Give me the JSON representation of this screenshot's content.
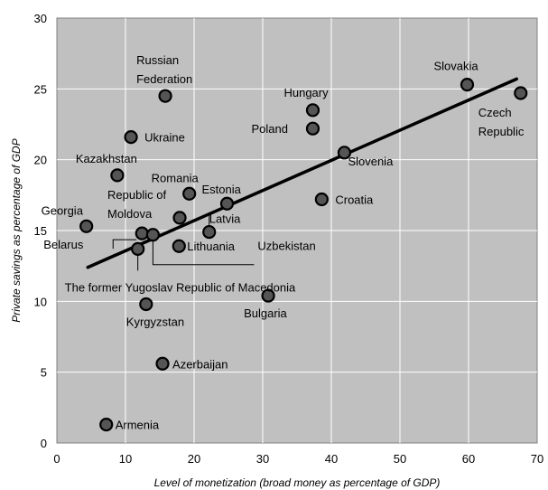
{
  "chart_data": {
    "type": "scatter",
    "title": "",
    "xlabel": "Level of monetization (broad money as percentage of GDP)",
    "ylabel": "Private savings as percentage of GDP",
    "xlim": [
      0,
      70
    ],
    "ylim": [
      0,
      30
    ],
    "x_ticks": [
      "0",
      "10",
      "20",
      "30",
      "40",
      "50",
      "60",
      "70"
    ],
    "y_ticks": [
      "0",
      "5",
      "10",
      "15",
      "20",
      "25",
      "30"
    ],
    "grid": "horizontal and vertical, white on grey",
    "background": "#c0c0c0",
    "marker_color": "#555555",
    "points": [
      {
        "label": "Armenia",
        "x": 7.2,
        "y": 1.3
      },
      {
        "label": "Azerbaijan",
        "x": 15.4,
        "y": 5.6
      },
      {
        "label": "Kyrgyzstan",
        "x": 13.0,
        "y": 9.8
      },
      {
        "label": "Bulgaria",
        "x": 30.8,
        "y": 10.4
      },
      {
        "label": "The former Yugoslav Republic of Macedonia",
        "x": 11.8,
        "y": 13.7
      },
      {
        "label": "Lithuania",
        "x": 17.8,
        "y": 13.9
      },
      {
        "label": "Belarus",
        "x": 12.4,
        "y": 14.8
      },
      {
        "label": "Uzbekistan",
        "x": 14.0,
        "y": 14.7
      },
      {
        "label": "Georgia",
        "x": 4.3,
        "y": 15.3
      },
      {
        "label": "Latvia",
        "x": 22.2,
        "y": 14.9
      },
      {
        "label": "Republic of Moldova",
        "x": 17.9,
        "y": 15.9
      },
      {
        "label": "Estonia",
        "x": 24.8,
        "y": 16.9
      },
      {
        "label": "Romania",
        "x": 19.3,
        "y": 17.6
      },
      {
        "label": "Croatia",
        "x": 38.6,
        "y": 17.2
      },
      {
        "label": "Kazakhstan",
        "x": 8.8,
        "y": 18.9
      },
      {
        "label": "Slovenia",
        "x": 41.9,
        "y": 20.5
      },
      {
        "label": "Ukraine",
        "x": 10.8,
        "y": 21.6
      },
      {
        "label": "Poland",
        "x": 37.3,
        "y": 22.2
      },
      {
        "label": "Hungary",
        "x": 37.3,
        "y": 23.5
      },
      {
        "label": "Russian Federation",
        "x": 15.8,
        "y": 24.5
      },
      {
        "label": "Czech Republic",
        "x": 67.6,
        "y": 24.7
      },
      {
        "label": "Slovakia",
        "x": 59.8,
        "y": 25.3
      }
    ],
    "trendline": {
      "x": [
        4.5,
        67.0
      ],
      "y": [
        12.4,
        25.7
      ]
    }
  }
}
